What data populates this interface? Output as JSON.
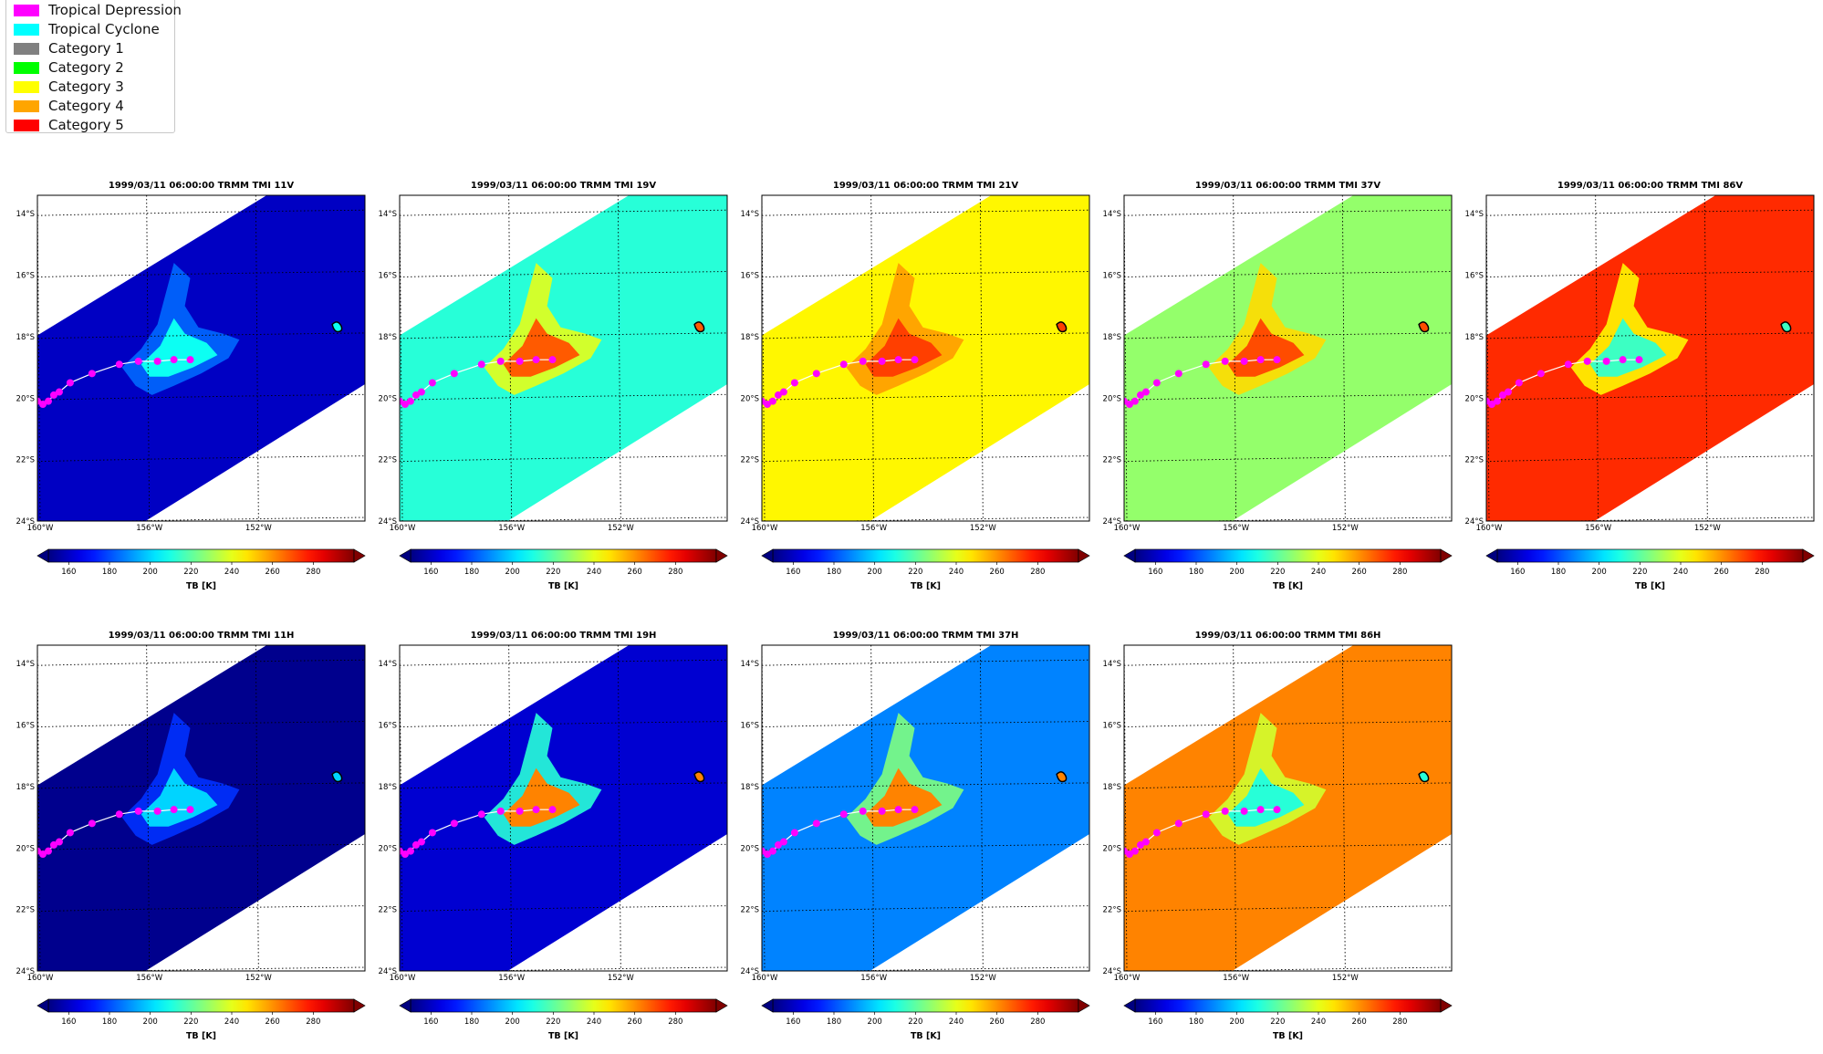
{
  "legend": {
    "items": [
      {
        "label": "Tropical Depression",
        "color": "#ff00ff"
      },
      {
        "label": "Tropical Cyclone",
        "color": "#00ffff"
      },
      {
        "label": "Category 1",
        "color": "#808080"
      },
      {
        "label": "Category 2",
        "color": "#00ff00"
      },
      {
        "label": "Category 3",
        "color": "#ffff00"
      },
      {
        "label": "Category 4",
        "color": "#ffa500"
      },
      {
        "label": "Category 5",
        "color": "#ff0000"
      }
    ]
  },
  "chart_data": [
    {
      "type": "heatmap",
      "title": "1999/03/11 06:00:00  TRMM TMI 11V",
      "base_value": 160,
      "storm_value": 208,
      "colorbar_label": "TB [K]",
      "colorbar_ticks": [
        160,
        180,
        200,
        220,
        240,
        260,
        280
      ],
      "xticks": [
        "160°W",
        "156°W",
        "152°W"
      ],
      "yticks": [
        "14°S",
        "16°S",
        "18°S",
        "20°S",
        "22°S",
        "24°S"
      ]
    },
    {
      "type": "heatmap",
      "title": "1999/03/11 06:00:00  TRMM TMI 19V",
      "base_value": 212,
      "storm_value": 268,
      "colorbar_label": "TB [K]",
      "colorbar_ticks": [
        160,
        180,
        200,
        220,
        240,
        260,
        280
      ],
      "xticks": [
        "160°W",
        "156°W",
        "152°W"
      ],
      "yticks": [
        "14°S",
        "16°S",
        "18°S",
        "20°S",
        "22°S",
        "24°S"
      ]
    },
    {
      "type": "heatmap",
      "title": "1999/03/11 06:00:00  TRMM TMI 21V",
      "base_value": 245,
      "storm_value": 272,
      "colorbar_label": "TB [K]",
      "colorbar_ticks": [
        160,
        180,
        200,
        220,
        240,
        260,
        280
      ],
      "xticks": [
        "160°W",
        "156°W",
        "152°W"
      ],
      "yticks": [
        "14°S",
        "16°S",
        "18°S",
        "20°S",
        "22°S",
        "24°S"
      ]
    },
    {
      "type": "heatmap",
      "title": "1999/03/11 06:00:00  TRMM TMI 37V",
      "base_value": 228,
      "storm_value": 270,
      "colorbar_label": "TB [K]",
      "colorbar_ticks": [
        160,
        180,
        200,
        220,
        240,
        260,
        280
      ],
      "xticks": [
        "160°W",
        "156°W",
        "152°W"
      ],
      "yticks": [
        "14°S",
        "16°S",
        "18°S",
        "20°S",
        "22°S",
        "24°S"
      ]
    },
    {
      "type": "heatmap",
      "title": "1999/03/11 06:00:00  TRMM TMI 86V",
      "base_value": 275,
      "storm_value": 215,
      "colorbar_label": "TB [K]",
      "colorbar_ticks": [
        160,
        180,
        200,
        220,
        240,
        260,
        280
      ],
      "xticks": [
        "160°W",
        "156°W",
        "152°W"
      ],
      "yticks": [
        "14°S",
        "16°S",
        "18°S",
        "20°S",
        "22°S",
        "24°S"
      ]
    },
    {
      "type": "heatmap",
      "title": "1999/03/11 06:00:00  TRMM TMI 11H",
      "base_value": 152,
      "storm_value": 200,
      "colorbar_label": "TB [K]",
      "colorbar_ticks": [
        160,
        180,
        200,
        220,
        240,
        260,
        280
      ],
      "xticks": [
        "160°W",
        "156°W",
        "152°W"
      ],
      "yticks": [
        "14°S",
        "16°S",
        "18°S",
        "20°S",
        "22°S",
        "24°S"
      ]
    },
    {
      "type": "heatmap",
      "title": "1999/03/11 06:00:00  TRMM TMI 19H",
      "base_value": 162,
      "storm_value": 262,
      "colorbar_label": "TB [K]",
      "colorbar_ticks": [
        160,
        180,
        200,
        220,
        240,
        260,
        280
      ],
      "xticks": [
        "160°W",
        "156°W",
        "152°W"
      ],
      "yticks": [
        "14°S",
        "16°S",
        "18°S",
        "20°S",
        "22°S",
        "24°S"
      ]
    },
    {
      "type": "heatmap",
      "title": "1999/03/11 06:00:00  TRMM TMI 37H",
      "base_value": 188,
      "storm_value": 262,
      "colorbar_label": "TB [K]",
      "colorbar_ticks": [
        160,
        180,
        200,
        220,
        240,
        260,
        280
      ],
      "xticks": [
        "160°W",
        "156°W",
        "152°W"
      ],
      "yticks": [
        "14°S",
        "16°S",
        "18°S",
        "20°S",
        "22°S",
        "24°S"
      ]
    },
    {
      "type": "heatmap",
      "title": "1999/03/11 06:00:00  TRMM TMI 86H",
      "base_value": 262,
      "storm_value": 212,
      "colorbar_label": "TB [K]",
      "colorbar_ticks": [
        160,
        180,
        200,
        220,
        240,
        260,
        280
      ],
      "xticks": [
        "160°W",
        "156°W",
        "152°W"
      ],
      "yticks": [
        "14°S",
        "16°S",
        "18°S",
        "20°S",
        "22°S",
        "24°S"
      ]
    }
  ],
  "track": {
    "color": "#ff00ff",
    "points": [
      {
        "lon": -160.2,
        "lat": -20.1
      },
      {
        "lon": -160.0,
        "lat": -20.1
      },
      {
        "lon": -159.8,
        "lat": -20.2
      },
      {
        "lon": -159.6,
        "lat": -20.1
      },
      {
        "lon": -159.4,
        "lat": -19.9
      },
      {
        "lon": -159.2,
        "lat": -19.8
      },
      {
        "lon": -158.8,
        "lat": -19.5
      },
      {
        "lon": -158.0,
        "lat": -19.2
      },
      {
        "lon": -157.0,
        "lat": -18.9
      },
      {
        "lon": -156.3,
        "lat": -18.8
      },
      {
        "lon": -155.6,
        "lat": -18.8
      },
      {
        "lon": -155.0,
        "lat": -18.75
      },
      {
        "lon": -154.4,
        "lat": -18.75
      }
    ]
  }
}
